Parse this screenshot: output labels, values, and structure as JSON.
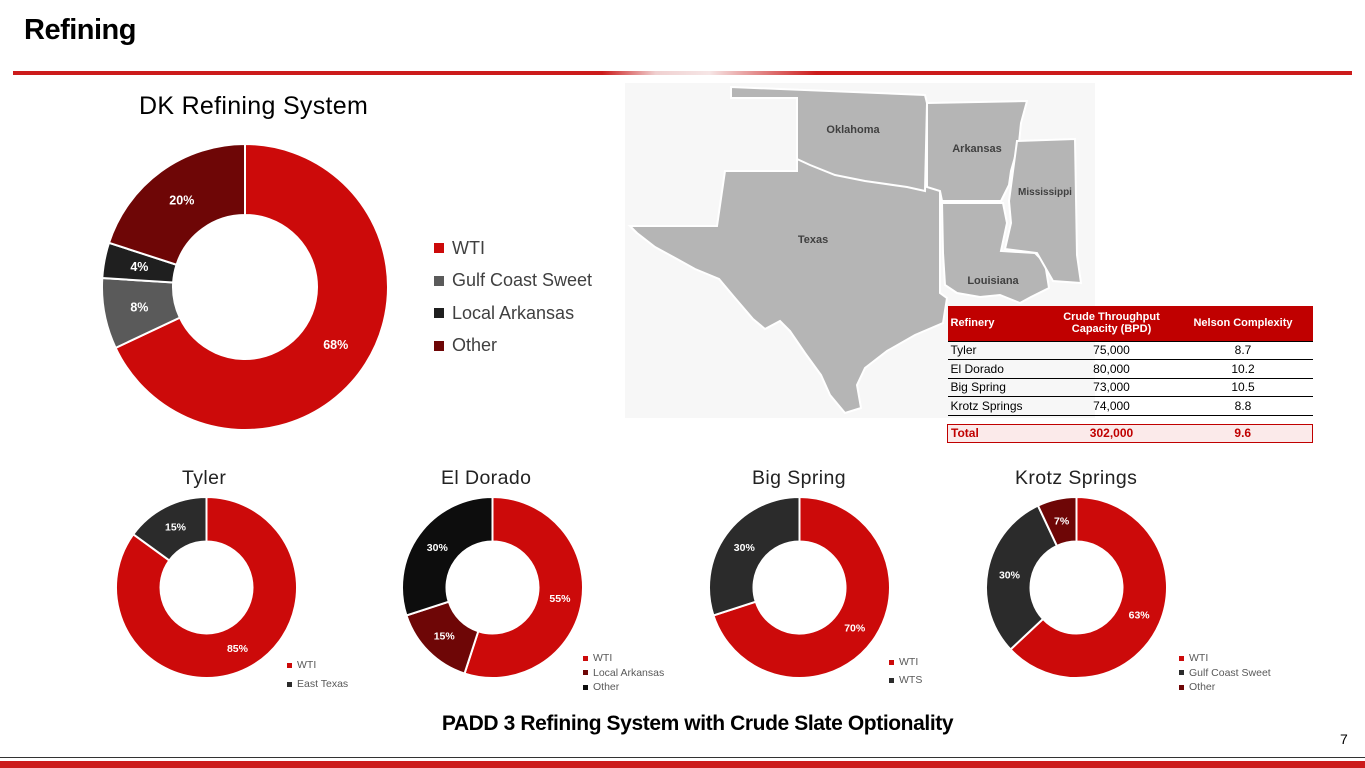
{
  "page": {
    "title": "Refining",
    "footer_caption": "PADD 3 Refining System with Crude Slate Optionality",
    "page_number": "7"
  },
  "colors": {
    "brand_red": "#cc1b1b",
    "wti": "#cc0a0a",
    "gulf_coast_sweet": "#5a5a5a",
    "local_arkansas": "#1f1f1f",
    "other": "#6e0606",
    "map_fill": "#b5b5b5"
  },
  "map": {
    "state_labels": [
      "Oklahoma",
      "Arkansas",
      "Mississippi",
      "Texas",
      "Louisiana"
    ]
  },
  "table": {
    "headers": [
      "Refinery",
      "Crude Throughput Capacity (BPD)",
      "Nelson Complexity"
    ],
    "rows": [
      [
        "Tyler",
        "75,000",
        "8.7"
      ],
      [
        "El Dorado",
        "80,000",
        "10.2"
      ],
      [
        "Big Spring",
        "73,000",
        "10.5"
      ],
      [
        "Krotz Springs",
        "74,000",
        "8.8"
      ]
    ],
    "total": [
      "Total",
      "302,000",
      "9.6"
    ]
  },
  "chart_data": [
    {
      "type": "pie",
      "title": "DK Refining System",
      "categories": [
        "WTI",
        "Gulf Coast Sweet",
        "Local Arkansas",
        "Other"
      ],
      "values": [
        68,
        8,
        4,
        20
      ],
      "data_labels": [
        "68%",
        "8%",
        "4%",
        "20%"
      ],
      "colors": [
        "#cc0a0a",
        "#5a5a5a",
        "#1f1f1f",
        "#6e0606"
      ],
      "legend": "right"
    },
    {
      "type": "pie",
      "title": "Tyler",
      "categories": [
        "WTI",
        "East Texas"
      ],
      "values": [
        85,
        15
      ],
      "data_labels": [
        "85%",
        "15%"
      ],
      "colors": [
        "#cc0a0a",
        "#2b2b2b"
      ],
      "legend": "bottom-right"
    },
    {
      "type": "pie",
      "title": "El Dorado",
      "categories": [
        "WTI",
        "Local Arkansas",
        "Other"
      ],
      "values": [
        55,
        15,
        30
      ],
      "data_labels": [
        "55%",
        "15%",
        "30%"
      ],
      "colors": [
        "#cc0a0a",
        "#6e0606",
        "#0d0d0d"
      ],
      "legend": "bottom-right"
    },
    {
      "type": "pie",
      "title": "Big Spring",
      "categories": [
        "WTI",
        "WTS"
      ],
      "values": [
        70,
        30
      ],
      "data_labels": [
        "70%",
        "30%"
      ],
      "colors": [
        "#cc0a0a",
        "#2b2b2b"
      ],
      "legend": "bottom-right"
    },
    {
      "type": "pie",
      "title": "Krotz Springs",
      "categories": [
        "WTI",
        "Gulf Coast Sweet",
        "Other"
      ],
      "values": [
        63,
        30,
        7
      ],
      "data_labels": [
        "63%",
        "30%",
        "7%"
      ],
      "colors": [
        "#cc0a0a",
        "#2b2b2b",
        "#6e0606"
      ],
      "legend": "bottom-right"
    }
  ]
}
